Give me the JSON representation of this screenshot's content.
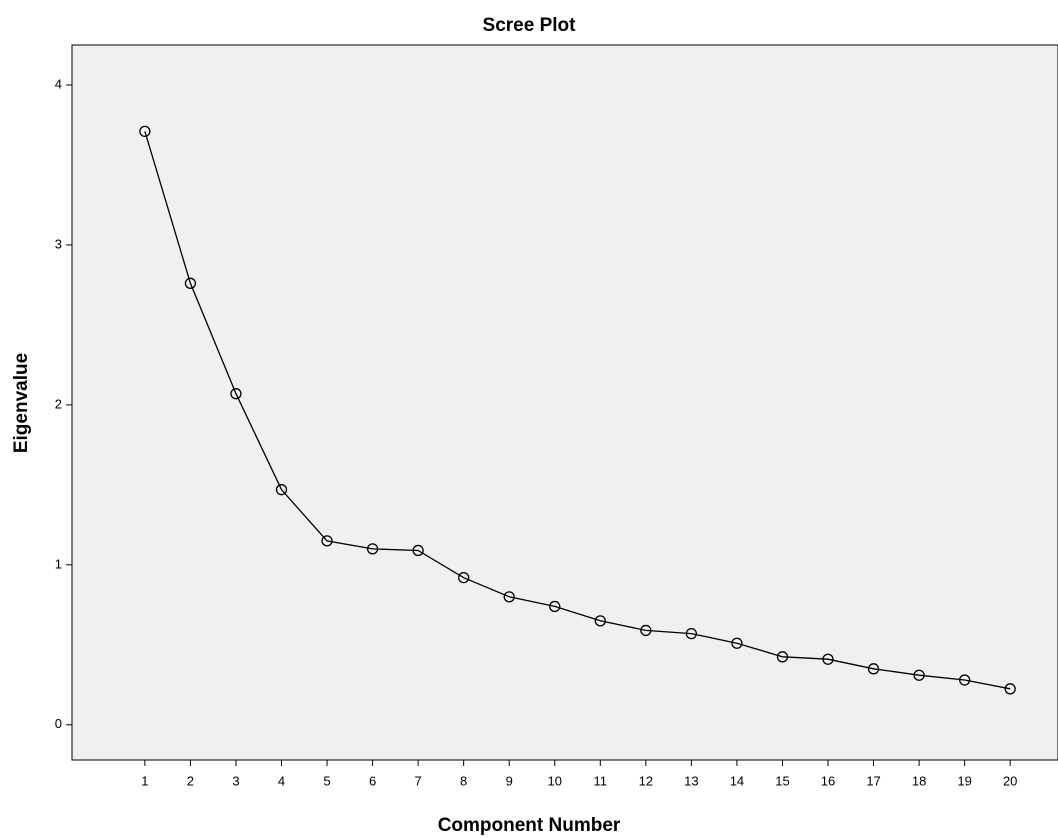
{
  "chart_data": {
    "type": "line",
    "title": "Scree Plot",
    "x_label": "Component Number",
    "y_label": "Eigenvalue",
    "x": [
      1,
      2,
      3,
      4,
      5,
      6,
      7,
      8,
      9,
      10,
      11,
      12,
      13,
      14,
      15,
      16,
      17,
      18,
      19,
      20
    ],
    "values": [
      3.71,
      2.76,
      2.07,
      1.47,
      1.15,
      1.1,
      1.09,
      0.92,
      0.8,
      0.74,
      0.65,
      0.59,
      0.57,
      0.51,
      0.425,
      0.41,
      0.35,
      0.31,
      0.28,
      0.225
    ],
    "color": "#000000",
    "xlim": [
      -0.6,
      21.05
    ],
    "xticks": [
      1,
      2,
      3,
      4,
      5,
      6,
      7,
      8,
      9,
      10,
      11,
      12,
      13,
      14,
      15,
      16,
      17,
      18,
      19,
      20
    ],
    "ylim": [
      -0.22,
      4.25
    ],
    "yticks": [
      0,
      1,
      2,
      3,
      4
    ],
    "grid": false
  }
}
